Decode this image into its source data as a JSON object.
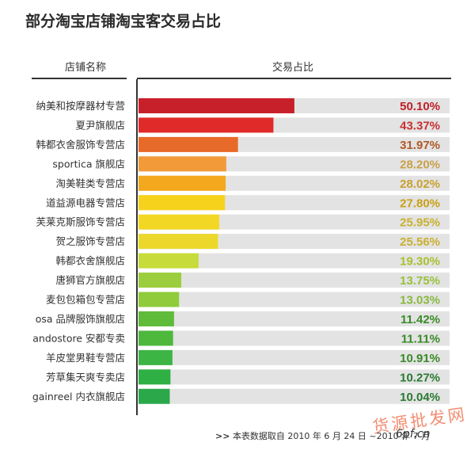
{
  "title": "部分淘宝店铺淘宝客交易占比",
  "footer": {
    "arrow": ">>",
    "text": "本表数据取自 2010 年 6 月 24 日 ~2010 年 7 月"
  },
  "watermark": {
    "text": "货源批发网",
    "url": "6pf.cn"
  },
  "chart_data": {
    "type": "bar",
    "orientation": "horizontal",
    "title": "部分淘宝店铺淘宝客交易占比",
    "xlabel": "交易占比",
    "ylabel": "店铺名称",
    "xlim": [
      0,
      100
    ],
    "grid": false,
    "legend": "none",
    "categories": [
      "纳美和按摩器材专营",
      "夏尹旗舰店",
      "韩都衣舍服饰专营店",
      "sportica 旗舰店",
      "淘美鞋类专营店",
      "道益源电器专营店",
      "芙莱克斯服饰专营店",
      "贺之服饰专营店",
      "韩都衣舍旗舰店",
      "唐狮官方旗舰店",
      "麦包包箱包专营店",
      "osa 品牌服饰旗舰店",
      "andostore 安都专卖",
      "羊皮堂男鞋专营店",
      "芳草集天爽专卖店",
      "gainreel 内衣旗舰店"
    ],
    "values": [
      50.1,
      43.37,
      31.97,
      28.2,
      28.02,
      27.8,
      25.95,
      25.56,
      19.3,
      13.75,
      13.03,
      11.42,
      11.11,
      10.91,
      10.27,
      10.04
    ],
    "value_labels": [
      "50.10%",
      "43.37%",
      "31.97%",
      "28.20%",
      "28.02%",
      "27.80%",
      "25.95%",
      "25.56%",
      "19.30%",
      "13.75%",
      "13.03%",
      "11.42%",
      "11.11%",
      "10.91%",
      "10.27%",
      "10.04%"
    ],
    "bar_colors": [
      "#c8202a",
      "#e02a2a",
      "#e86a28",
      "#f29a3a",
      "#f4a81e",
      "#f7d21c",
      "#f2d825",
      "#ecd82a",
      "#c7db3a",
      "#9ccd3c",
      "#8fcb3a",
      "#5fbb3a",
      "#4db83c",
      "#3cb544",
      "#2fb044",
      "#2aa84a"
    ],
    "label_colors": [
      "#c02028",
      "#c83030",
      "#b05a28",
      "#c9a04a",
      "#c9a030",
      "#c9a018",
      "#c9b030",
      "#c9b030",
      "#a9c030",
      "#98c040",
      "#88b840",
      "#3a8a28",
      "#3a8a28",
      "#3a8a28",
      "#2a7a30",
      "#2a7a30"
    ],
    "track_color": "#e3e3e3"
  },
  "headers": {
    "left": "店铺名称",
    "right": "交易占比"
  }
}
